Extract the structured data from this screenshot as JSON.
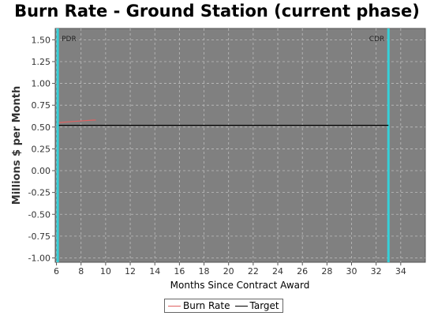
{
  "chart_data": {
    "type": "line",
    "title": "Burn Rate - Ground Station (current phase)",
    "xlabel": "Months Since Contract Award",
    "ylabel": "Millions $ per Month",
    "xlim": [
      5.9,
      36
    ],
    "ylim": [
      -1.05,
      1.63
    ],
    "x_ticks": [
      6,
      8,
      10,
      12,
      14,
      16,
      18,
      20,
      22,
      24,
      26,
      28,
      30,
      32,
      34
    ],
    "y_ticks": [
      -1.0,
      -0.75,
      -0.5,
      -0.25,
      0.0,
      0.25,
      0.5,
      0.75,
      1.0,
      1.25,
      1.5
    ],
    "grid": true,
    "legend_position": "bottom-center",
    "series": [
      {
        "name": "Burn Rate",
        "color": "#e06060",
        "x": [
          6.2,
          7,
          8,
          9,
          9.2
        ],
        "y": [
          0.55,
          0.56,
          0.57,
          0.58,
          0.58
        ]
      },
      {
        "name": "Target",
        "color": "#000000",
        "x": [
          6.2,
          33
        ],
        "y": [
          0.52,
          0.52
        ]
      }
    ],
    "markers": [
      {
        "label": "PDR",
        "x": 6.1,
        "color": "#35d0d8"
      },
      {
        "label": "CDR",
        "x": 33.0,
        "color": "#35d0d8"
      }
    ]
  }
}
